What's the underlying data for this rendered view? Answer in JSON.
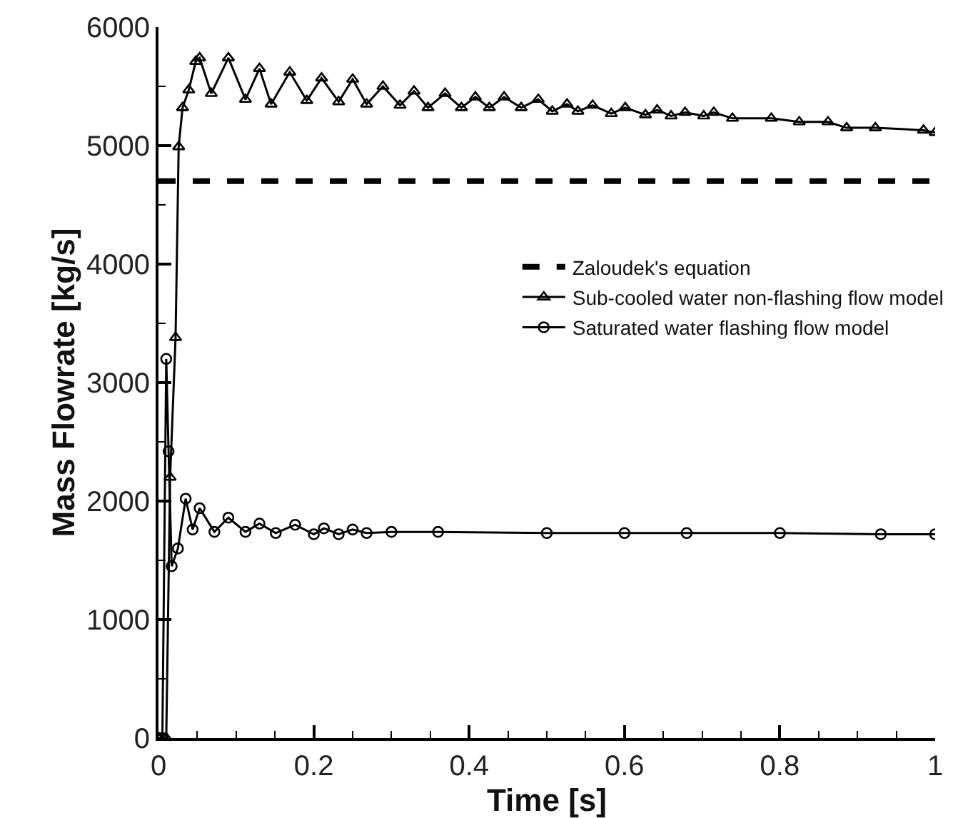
{
  "chart_data": {
    "type": "line",
    "xlabel": "Time [s]",
    "ylabel": "Mass Flowrate [kg/s]",
    "xlim": [
      0,
      1
    ],
    "ylim": [
      0,
      6000
    ],
    "xticks": [
      0,
      0.2,
      0.4,
      0.6,
      0.8,
      1
    ],
    "yticks": [
      0,
      1000,
      2000,
      3000,
      4000,
      5000,
      6000
    ],
    "grid": false,
    "legend": "right",
    "line_style": "solid",
    "ref_lines": [
      {
        "axis": "y",
        "value": 4700,
        "label": "Zaloudek's equation",
        "color": "#000000",
        "line_style": "dashed"
      }
    ],
    "series": [
      {
        "name": "Sub-cooled water non-flashing flow model",
        "color": "#000000",
        "marker": "triangle",
        "x": [
          0,
          0.01,
          0.015,
          0.022,
          0.026,
          0.031,
          0.039,
          0.048,
          0.053,
          0.068,
          0.09,
          0.112,
          0.13,
          0.145,
          0.169,
          0.191,
          0.21,
          0.232,
          0.25,
          0.268,
          0.289,
          0.311,
          0.329,
          0.347,
          0.369,
          0.39,
          0.408,
          0.426,
          0.445,
          0.467,
          0.489,
          0.507,
          0.526,
          0.54,
          0.559,
          0.583,
          0.601,
          0.627,
          0.642,
          0.66,
          0.678,
          0.702,
          0.715,
          0.739,
          0.789,
          0.825,
          0.862,
          0.886,
          0.923,
          0.985,
          1
        ],
        "values": [
          0,
          0,
          2200,
          3380,
          4990,
          5320,
          5470,
          5710,
          5740,
          5440,
          5740,
          5390,
          5650,
          5350,
          5620,
          5380,
          5570,
          5370,
          5560,
          5350,
          5500,
          5340,
          5460,
          5320,
          5440,
          5320,
          5410,
          5320,
          5410,
          5320,
          5390,
          5290,
          5350,
          5290,
          5340,
          5270,
          5320,
          5260,
          5300,
          5250,
          5280,
          5250,
          5280,
          5230,
          5230,
          5200,
          5200,
          5150,
          5150,
          5130,
          5110
        ]
      },
      {
        "name": "Saturated water flashing flow model",
        "color": "#000000",
        "marker": "circle",
        "x": [
          0,
          0.005,
          0.01,
          0.013,
          0.017,
          0.025,
          0.035,
          0.044,
          0.053,
          0.072,
          0.09,
          0.112,
          0.13,
          0.151,
          0.176,
          0.2,
          0.213,
          0.232,
          0.25,
          0.268,
          0.3,
          0.36,
          0.5,
          0.6,
          0.68,
          0.8,
          0.93,
          1
        ],
        "values": [
          0,
          0,
          3200,
          2420,
          1450,
          1600,
          2020,
          1760,
          1940,
          1740,
          1860,
          1740,
          1810,
          1730,
          1800,
          1720,
          1770,
          1720,
          1760,
          1730,
          1740,
          1740,
          1730,
          1730,
          1730,
          1730,
          1720,
          1720
        ]
      }
    ]
  }
}
